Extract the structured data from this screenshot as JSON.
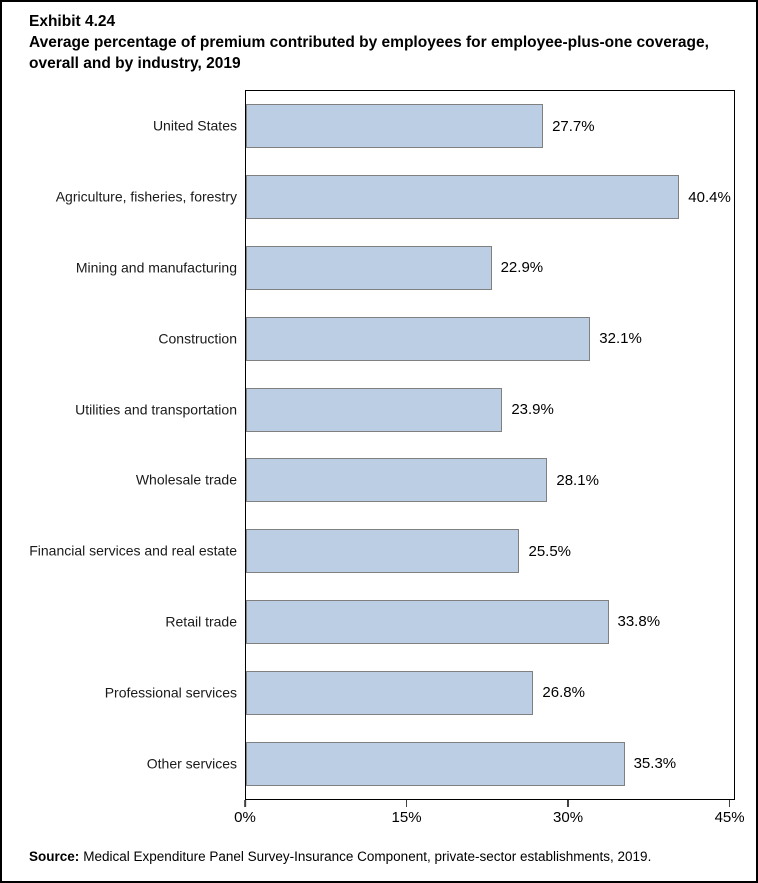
{
  "chart_data": {
    "type": "bar",
    "orientation": "horizontal",
    "title": "Exhibit 4.24",
    "subtitle": "Average percentage of premium contributed by employees for employee-plus-one coverage, overall and by industry, 2019",
    "categories": [
      "United States",
      "Agriculture, fisheries, forestry",
      "Mining and manufacturing",
      "Construction",
      "Utilities and transportation",
      "Wholesale trade",
      "Financial services and real estate",
      "Retail trade",
      "Professional services",
      "Other services"
    ],
    "values": [
      27.7,
      40.4,
      22.9,
      32.1,
      23.9,
      28.1,
      25.5,
      33.8,
      26.8,
      35.3
    ],
    "value_labels": [
      "27.7%",
      "40.4%",
      "22.9%",
      "32.1%",
      "23.9%",
      "28.1%",
      "25.5%",
      "33.8%",
      "26.8%",
      "35.3%"
    ],
    "x_ticks": [
      {
        "value": 0,
        "label": "0%"
      },
      {
        "value": 15,
        "label": "15%"
      },
      {
        "value": 30,
        "label": "30%"
      },
      {
        "value": 45,
        "label": "45%"
      }
    ],
    "xlim": [
      0,
      45.5
    ],
    "xlabel": "",
    "ylabel": "",
    "grid": false,
    "legend": false,
    "bar_color": "#BCCEE4",
    "bar_border_color": "#808080",
    "source_label": "Source:",
    "source": "Medical Expenditure Panel Survey-Insurance Component, private-sector establishments, 2019."
  }
}
